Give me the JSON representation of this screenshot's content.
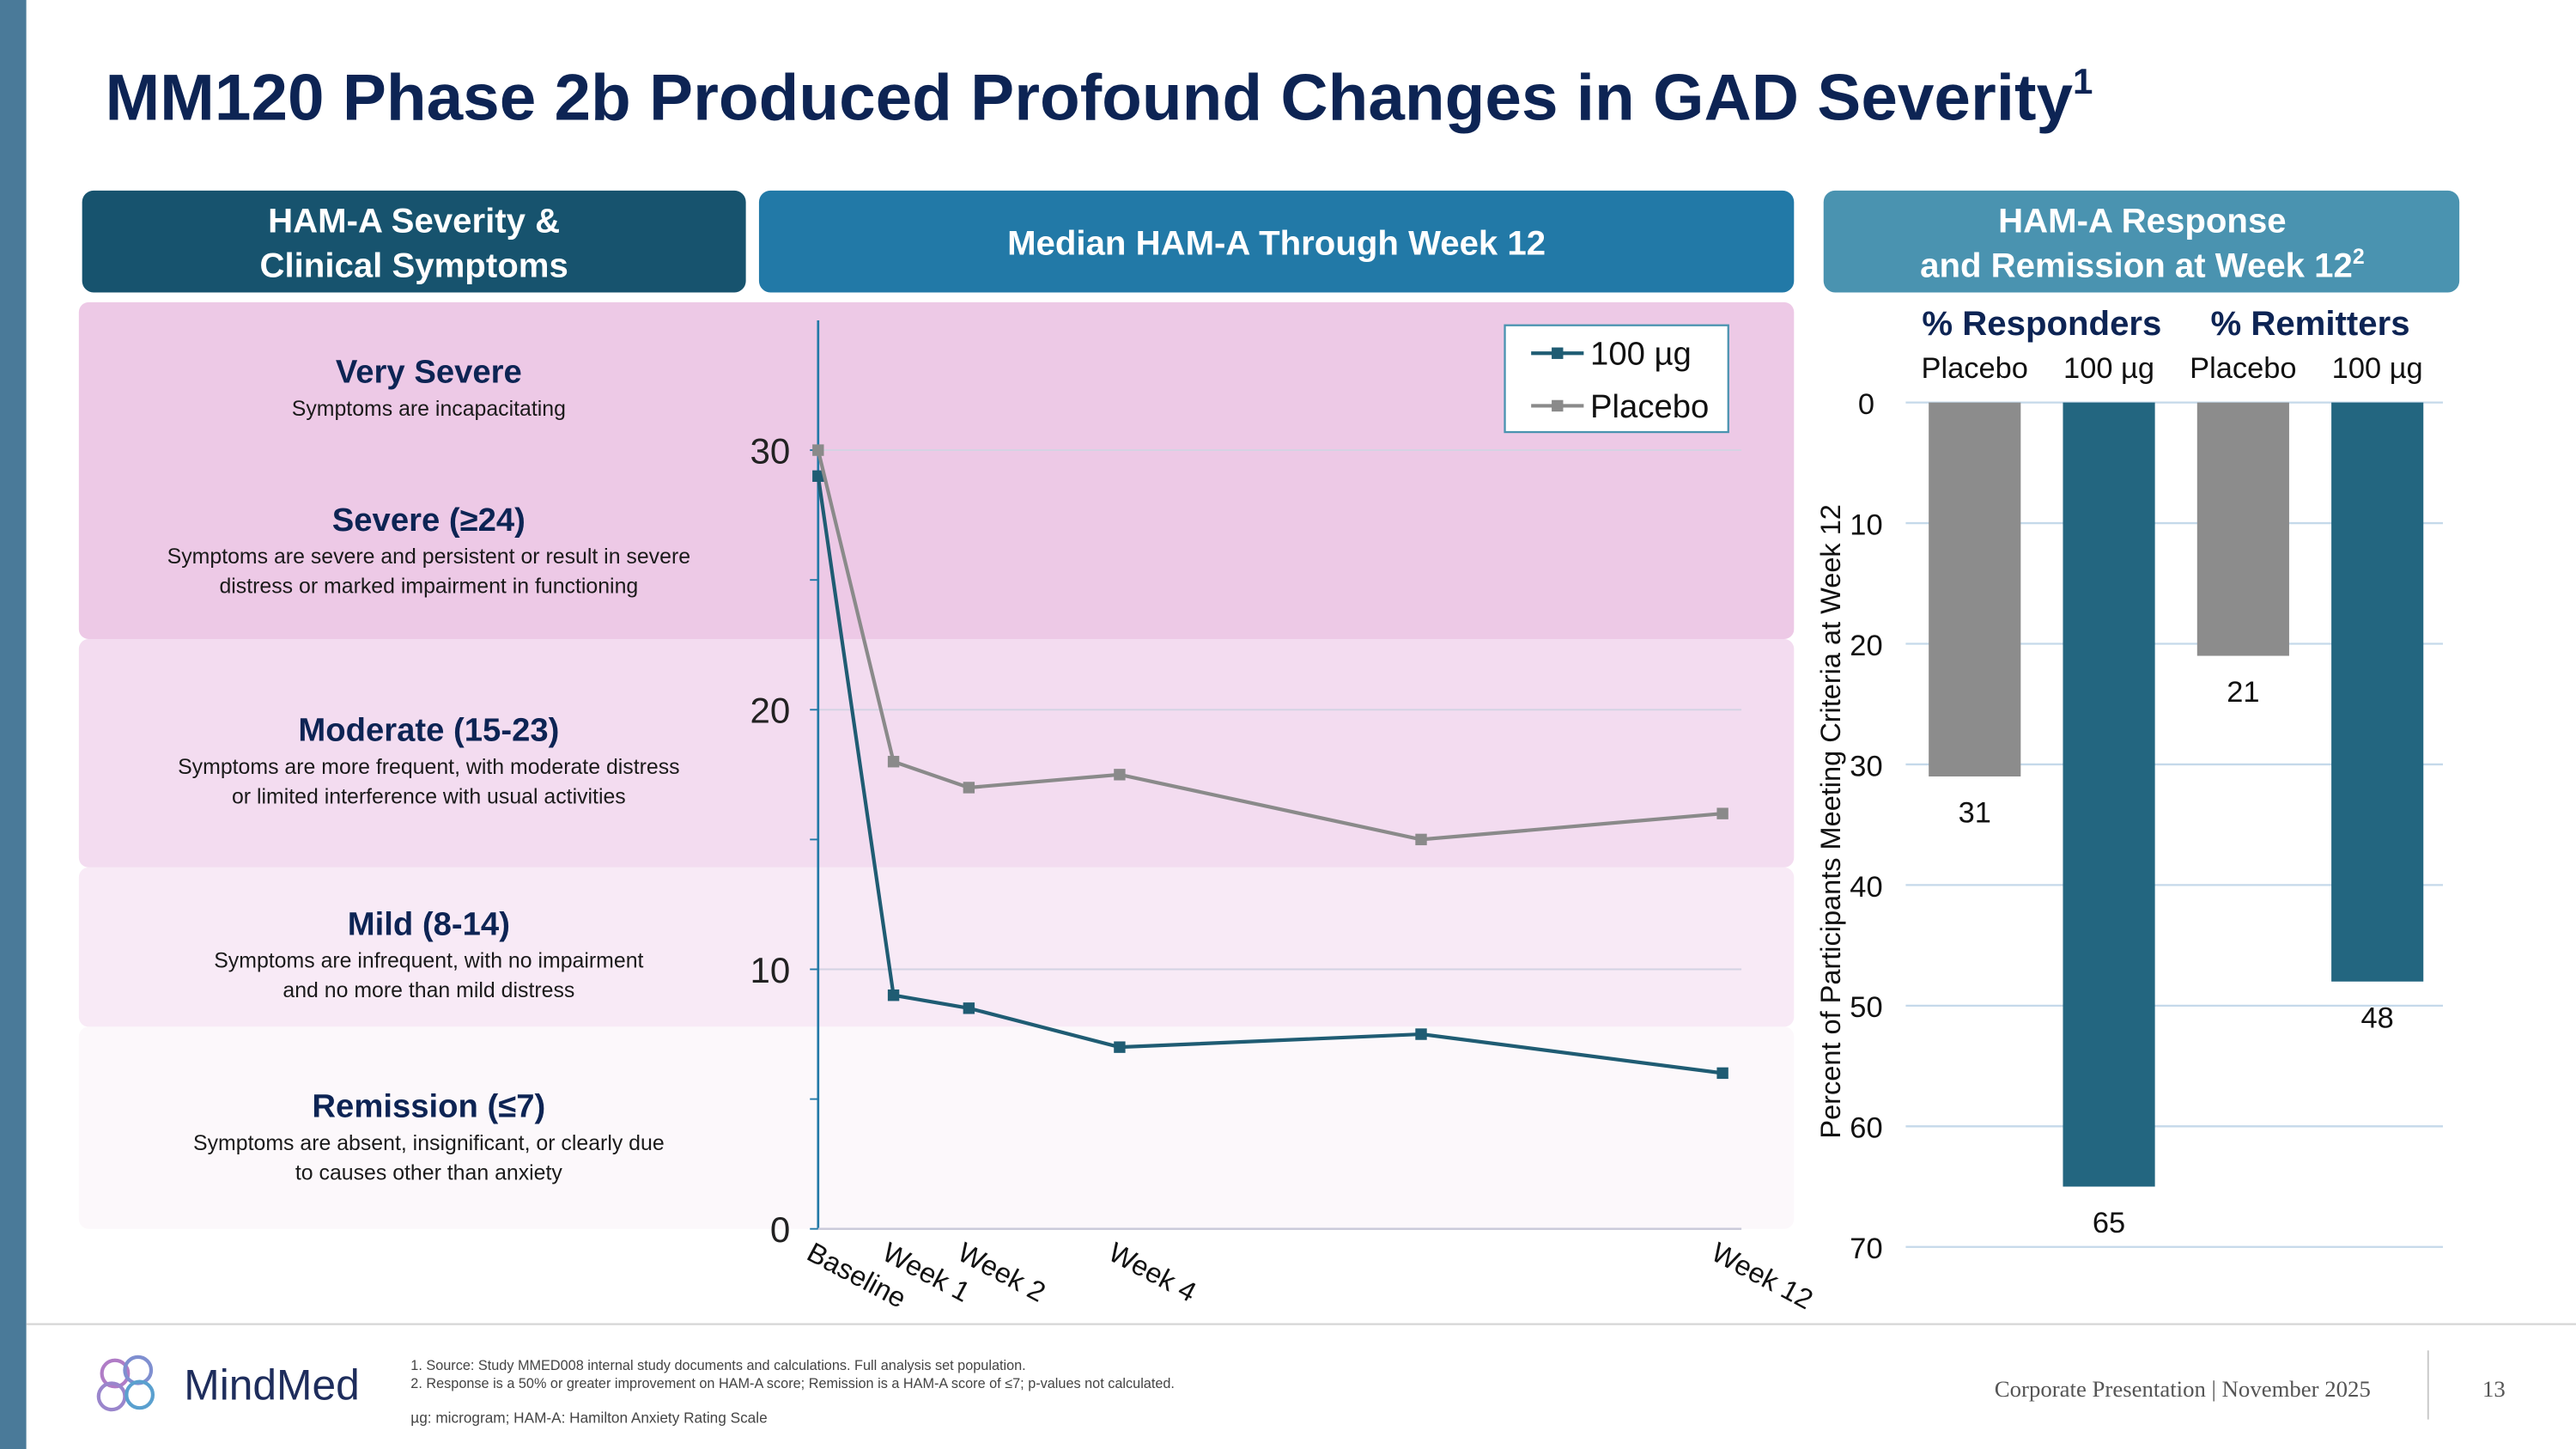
{
  "title": "MM120 Phase 2b Produced Profound Changes in GAD Severity",
  "title_superscript": "1",
  "panel_headers": [
    {
      "lines": [
        "HAM-A Severity &",
        "Clinical Symptoms"
      ]
    },
    {
      "lines": [
        "Median HAM-A Through Week 12"
      ]
    },
    {
      "lines": [
        "HAM-A Response",
        "and Remission at Week 12"
      ],
      "superscript": "2"
    }
  ],
  "severity_levels": [
    {
      "name": "Very Severe",
      "description": [
        "Symptoms are incapacitating"
      ]
    },
    {
      "name": "Severe (≥24)",
      "description": [
        "Symptoms are severe and persistent or result in severe",
        "distress or marked impairment in functioning"
      ]
    },
    {
      "name": "Moderate (15-23)",
      "description": [
        "Symptoms are more frequent, with moderate distress",
        "or limited interference with usual activities"
      ]
    },
    {
      "name": "Mild (8-14)",
      "description": [
        "Symptoms are infrequent, with no impairment",
        "and no more than mild distress"
      ]
    },
    {
      "name": "Remission (≤7)",
      "description": [
        "Symptoms are absent, insignificant, or clearly due",
        "to causes other than anxiety"
      ]
    }
  ],
  "chart_data": [
    {
      "type": "line",
      "x": [
        0,
        1,
        2,
        4,
        8,
        12
      ],
      "xlim": [
        0,
        12.25
      ],
      "xticks": [
        {
          "value": 0,
          "label": "Baseline"
        },
        {
          "value": 1,
          "label": "Week 1"
        },
        {
          "value": 2,
          "label": "Week 2"
        },
        {
          "value": 4,
          "label": "Week 4"
        },
        {
          "value": 12,
          "label": "Week 12"
        }
      ],
      "ylim": [
        0,
        35
      ],
      "yticks": [
        0,
        10,
        20,
        30
      ],
      "minor_yticks": [
        5,
        15,
        25
      ],
      "grid": true,
      "legend": "upper right",
      "series": [
        {
          "name": "100 µg",
          "color": "#1f5c73",
          "values": [
            29,
            9,
            8.5,
            7,
            7.5,
            6
          ]
        },
        {
          "name": "Placebo",
          "color": "#8a8a8a",
          "values": [
            30,
            18,
            17,
            17.5,
            15,
            16
          ]
        }
      ]
    },
    {
      "type": "bar",
      "groups": [
        "% Responders",
        "% Remitters"
      ],
      "categories": [
        "Placebo",
        "100 µg",
        "Placebo",
        "100 µg"
      ],
      "values": [
        31,
        65,
        21,
        48
      ],
      "colors": [
        "#8c8c8c",
        "#236680",
        "#8c8c8c",
        "#236680"
      ],
      "ylabel": "Percent of Participants Meeting Criteria at Week 12",
      "ylim": [
        0,
        70
      ],
      "yticks": [
        0,
        10,
        20,
        30,
        40,
        50,
        60,
        70
      ],
      "y_inverted": true,
      "grid": true
    }
  ],
  "footer": {
    "logo": "MindMed",
    "footnotes": [
      "1.  Source: Study MMED008 internal study documents and calculations. Full analysis set population.",
      "2.  Response is a 50% or greater improvement on HAM-A score; Remission is a HAM-A score of ≤7; p-values not calculated."
    ],
    "abbreviations": "µg: microgram; HAM-A: Hamilton Anxiety Rating Scale",
    "presentation": "Corporate Presentation | November 2025",
    "page": "13"
  }
}
